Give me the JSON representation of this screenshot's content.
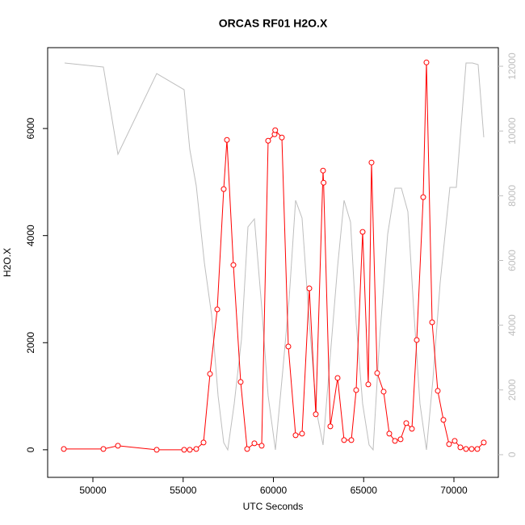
{
  "chart_data": {
    "type": "line",
    "title": "ORCAS RF01 H2O.X",
    "x_label": "UTC Seconds",
    "y_label": "H2O.X",
    "xlim": [
      47494,
      72461
    ],
    "xticks": [
      50000,
      55000,
      60000,
      65000,
      70000
    ],
    "ylim": [
      -515,
      7510
    ],
    "yticks": [
      0,
      2000,
      4000,
      6000
    ],
    "y2lim": [
      -700,
      12575
    ],
    "y2ticks": [
      0,
      2000,
      4000,
      6000,
      8000,
      10000,
      12000
    ],
    "y2_color": "#bebebe",
    "series": [
      {
        "color": "#ff0000",
        "marker": "circle",
        "x": [
          48389,
          50581,
          51386,
          53534,
          55055,
          55368,
          55726,
          56129,
          56487,
          56889,
          57247,
          57426,
          57784,
          58187,
          58545,
          58947,
          59350,
          59708,
          60066,
          60100,
          60469,
          60827,
          61229,
          61587,
          61990,
          62348,
          62750,
          62780,
          63153,
          63556,
          63914,
          64317,
          64585,
          64943,
          65256,
          65435,
          65749,
          66106,
          66420,
          66733,
          67046,
          67359,
          67673,
          67941,
          68299,
          68478,
          68792,
          69105,
          69418,
          69731,
          70044,
          70357,
          70670,
          70983,
          71296,
          71654
        ],
        "values": [
          15,
          15,
          75,
          0,
          0,
          0,
          15,
          136,
          1417,
          2622,
          4868,
          5787,
          3451,
          1266,
          15,
          121,
          75,
          5772,
          5892,
          5968,
          5832,
          1929,
          271,
          301,
          3014,
          663,
          5214,
          4988,
          437,
          1341,
          181,
          181,
          1115,
          4069,
          1221,
          5365,
          1432,
          1085,
          301,
          166,
          196,
          497,
          392,
          2050,
          4717,
          7234,
          2381,
          1100,
          558,
          105,
          166,
          45,
          15,
          15,
          15,
          136
        ]
      },
      {
        "color": "#bebebe",
        "axis": "y2",
        "x": [
          48434,
          50581,
          51386,
          53534,
          55055,
          55368,
          55726,
          56174,
          56577,
          56935,
          57247,
          57471,
          57829,
          58232,
          58590,
          58947,
          59350,
          59708,
          60111,
          60514,
          60872,
          61229,
          61587,
          61990,
          62392,
          62750,
          63153,
          63556,
          63914,
          64272,
          64585,
          64943,
          65301,
          65524,
          65882,
          66330,
          66733,
          67091,
          67449,
          67762,
          68120,
          68478,
          68836,
          69238,
          69775,
          70133,
          70670,
          71028,
          71341,
          71654
        ],
        "values": [
          12100,
          11977,
          9281,
          11776,
          11277,
          9431,
          8308,
          5938,
          4316,
          1821,
          374,
          150,
          1572,
          3568,
          7036,
          7285,
          4566,
          1821,
          150,
          2570,
          4815,
          7859,
          7310,
          4067,
          1322,
          299,
          3069,
          5813,
          7859,
          7186,
          4067,
          1572,
          299,
          150,
          3568,
          6811,
          8234,
          8234,
          7510,
          4566,
          1572,
          150,
          2320,
          5314,
          8258,
          8258,
          12101,
          12101,
          12051,
          9805
        ]
      }
    ]
  }
}
